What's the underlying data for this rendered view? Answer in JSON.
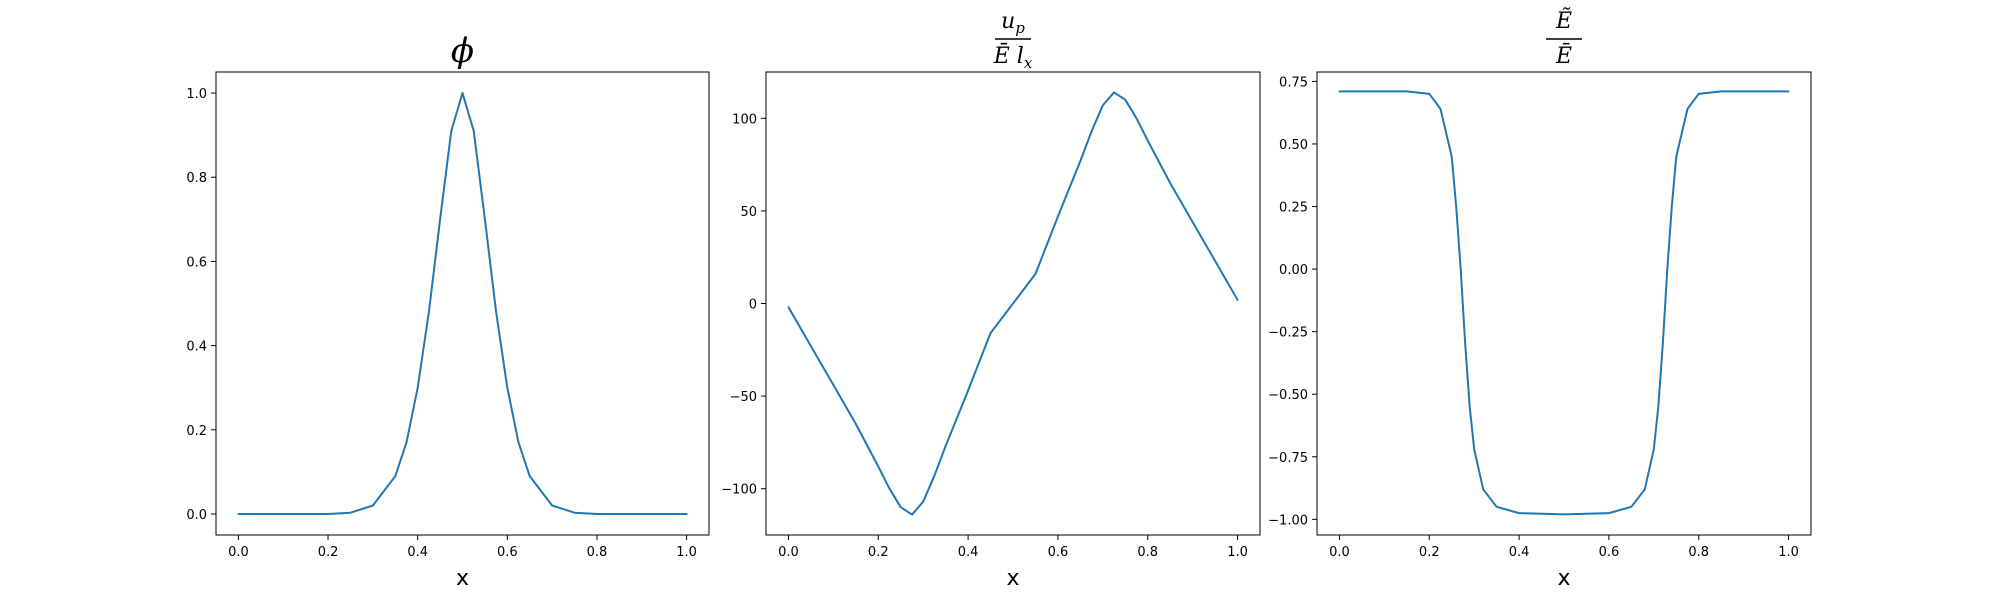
{
  "colors": {
    "line": "#1f77b4"
  },
  "chart_data": [
    {
      "type": "line",
      "title": "ϕ",
      "xlabel": "x",
      "ylabel": "",
      "xlim": [
        -0.05,
        1.05
      ],
      "ylim": [
        -0.05,
        1.05
      ],
      "x_ticks": [
        "0.0",
        "0.2",
        "0.4",
        "0.6",
        "0.8",
        "1.0"
      ],
      "y_ticks": [
        "0.0",
        "0.2",
        "0.4",
        "0.6",
        "0.8",
        "1.0"
      ],
      "grid": false,
      "series": [
        {
          "x": [
            0.0,
            0.05,
            0.1,
            0.15,
            0.2,
            0.25,
            0.3,
            0.35,
            0.375,
            0.4,
            0.425,
            0.45,
            0.475,
            0.5,
            0.525,
            0.55,
            0.575,
            0.6,
            0.625,
            0.65,
            0.7,
            0.75,
            0.8,
            0.85,
            0.9,
            0.95,
            1.0
          ],
          "y": [
            0.0,
            0.0,
            0.0,
            0.0,
            0.0,
            0.003,
            0.02,
            0.09,
            0.17,
            0.3,
            0.48,
            0.7,
            0.91,
            1.0,
            0.91,
            0.7,
            0.48,
            0.3,
            0.17,
            0.09,
            0.02,
            0.003,
            0.0,
            0.0,
            0.0,
            0.0,
            0.0
          ]
        }
      ]
    },
    {
      "type": "line",
      "title": "u_p / Ē l_x",
      "title_parts": {
        "num_main": "u",
        "num_sub": "p",
        "den_main": "Ē l",
        "den_sub": "x"
      },
      "xlabel": "x",
      "ylabel": "",
      "xlim": [
        -0.05,
        1.05
      ],
      "ylim": [
        -125,
        125
      ],
      "x_ticks": [
        "0.0",
        "0.2",
        "0.4",
        "0.6",
        "0.8",
        "1.0"
      ],
      "y_ticks": [
        "−100",
        "−50",
        "0",
        "50",
        "100"
      ],
      "y_tick_values": [
        -100,
        -50,
        0,
        50,
        100
      ],
      "grid": false,
      "series": [
        {
          "x": [
            0.0,
            0.05,
            0.1,
            0.15,
            0.2,
            0.225,
            0.25,
            0.275,
            0.3,
            0.325,
            0.35,
            0.4,
            0.45,
            0.5,
            0.55,
            0.6,
            0.65,
            0.675,
            0.7,
            0.725,
            0.75,
            0.775,
            0.8,
            0.85,
            0.9,
            0.95,
            1.0
          ],
          "y": [
            -2,
            -23,
            -44,
            -65,
            -88,
            -100,
            -110,
            -114,
            -107,
            -93,
            -77,
            -47,
            -16,
            0,
            16,
            47,
            77,
            93,
            107,
            114,
            110,
            100,
            88,
            65,
            44,
            23,
            2
          ]
        }
      ]
    },
    {
      "type": "line",
      "title": "Ẽ / Ē",
      "title_parts": {
        "num_main": "Ẽ",
        "den_main": "Ē"
      },
      "xlabel": "x",
      "ylabel": "",
      "xlim": [
        -0.05,
        1.05
      ],
      "ylim": [
        -1.0625,
        0.7875
      ],
      "x_ticks": [
        "0.0",
        "0.2",
        "0.4",
        "0.6",
        "0.8",
        "1.0"
      ],
      "y_ticks": [
        "−1.00",
        "−0.75",
        "−0.50",
        "−0.25",
        "0.00",
        "0.25",
        "0.50",
        "0.75"
      ],
      "y_tick_values": [
        -1.0,
        -0.75,
        -0.5,
        -0.25,
        0.0,
        0.25,
        0.5,
        0.75
      ],
      "grid": false,
      "series": [
        {
          "x": [
            0.0,
            0.05,
            0.1,
            0.15,
            0.2,
            0.225,
            0.25,
            0.26,
            0.27,
            0.28,
            0.29,
            0.3,
            0.32,
            0.35,
            0.4,
            0.5,
            0.6,
            0.65,
            0.68,
            0.7,
            0.71,
            0.72,
            0.73,
            0.74,
            0.75,
            0.775,
            0.8,
            0.85,
            0.9,
            0.95,
            1.0
          ],
          "y": [
            0.71,
            0.71,
            0.71,
            0.71,
            0.7,
            0.64,
            0.45,
            0.25,
            0.0,
            -0.3,
            -0.55,
            -0.72,
            -0.88,
            -0.95,
            -0.975,
            -0.98,
            -0.975,
            -0.95,
            -0.88,
            -0.72,
            -0.55,
            -0.3,
            0.0,
            0.25,
            0.45,
            0.64,
            0.7,
            0.71,
            0.71,
            0.71,
            0.71
          ]
        }
      ]
    }
  ]
}
